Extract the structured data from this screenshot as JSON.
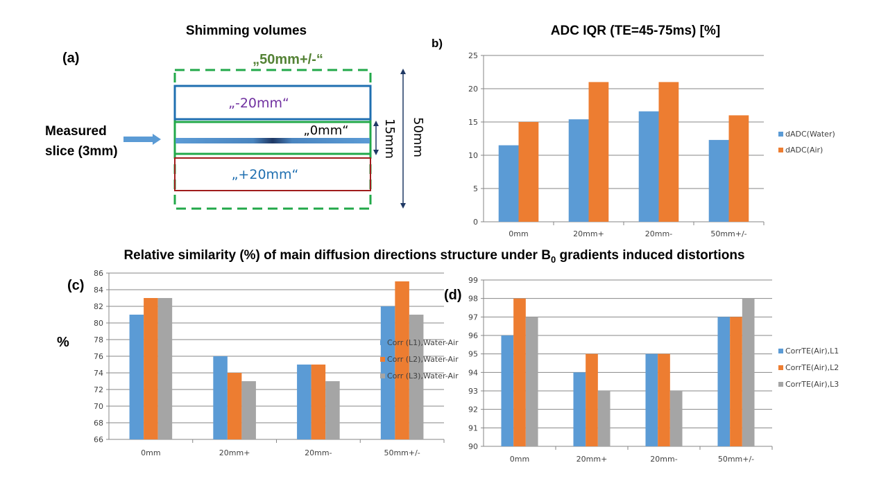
{
  "panel_a": {
    "label": "(a)",
    "title": "Shimming volumes",
    "volume_50": "„50mm+/-“",
    "volume_minus20": "„-20mm“",
    "volume_0": "„0mm“",
    "volume_plus20": "„+20mm“",
    "measured_slice": [
      "Measured",
      "slice (3mm)"
    ],
    "dim_15": "15mm",
    "dim_50": "50mm",
    "colors": {
      "green": "#22a84a",
      "blue": "#1f6fb0",
      "red": "#a01c1c",
      "purple": "#7030a0",
      "olive": "#548235",
      "arrow": "#5b9bd5",
      "dim": "#1f3864"
    }
  },
  "section_title": {
    "main": "Relative similarity (%) of  main diffusion directions structure under B",
    "sub": "0",
    "rest": " gradients induced distortions"
  },
  "chart_data": [
    {
      "panel": "b)",
      "type": "bar",
      "title": "ADC IQR  (TE=45-75ms) [%]",
      "categories": [
        "0mm",
        "20mm+",
        "20mm-",
        "50mm+/-"
      ],
      "ylim": [
        0,
        25
      ],
      "yticks": [
        0,
        5,
        10,
        15,
        20,
        25
      ],
      "grid": true,
      "legend": "right",
      "series": [
        {
          "name": "dADC(Water)",
          "color": "#5b9bd5",
          "values": [
            11.5,
            15.4,
            16.6,
            12.3
          ]
        },
        {
          "name": "dADC(Air)",
          "color": "#ed7d31",
          "values": [
            15,
            21,
            21,
            16
          ]
        }
      ]
    },
    {
      "panel": "(c)",
      "type": "bar",
      "ylabel": "%",
      "categories": [
        "0mm",
        "20mm+",
        "20mm-",
        "50mm+/-"
      ],
      "ylim": [
        66,
        86
      ],
      "yticks": [
        66,
        68,
        70,
        72,
        74,
        76,
        78,
        80,
        82,
        84,
        86
      ],
      "grid": true,
      "legend": "right",
      "series": [
        {
          "name": "Corr (L1),Water-Air",
          "color": "#5b9bd5",
          "values": [
            81,
            76,
            75,
            82
          ]
        },
        {
          "name": "Corr (L2),Water-Air",
          "color": "#ed7d31",
          "values": [
            83,
            74,
            75,
            85
          ]
        },
        {
          "name": "Corr (L3),Water-Air",
          "color": "#a5a5a5",
          "values": [
            83,
            73,
            73,
            81
          ]
        }
      ]
    },
    {
      "panel": "(d)",
      "type": "bar",
      "categories": [
        "0mm",
        "20mm+",
        "20mm-",
        "50mm+/-"
      ],
      "ylim": [
        90,
        99
      ],
      "yticks": [
        90,
        91,
        92,
        93,
        94,
        95,
        96,
        97,
        98,
        99
      ],
      "grid": true,
      "legend": "right",
      "series": [
        {
          "name": "CorrTE(Air),L1",
          "color": "#5b9bd5",
          "values": [
            96,
            94,
            95,
            97
          ]
        },
        {
          "name": "CorrTE(Air),L2",
          "color": "#ed7d31",
          "values": [
            98,
            95,
            95,
            97
          ]
        },
        {
          "name": "CorrTE(Air),L3",
          "color": "#a5a5a5",
          "values": [
            97,
            93,
            93,
            98
          ]
        }
      ]
    }
  ]
}
